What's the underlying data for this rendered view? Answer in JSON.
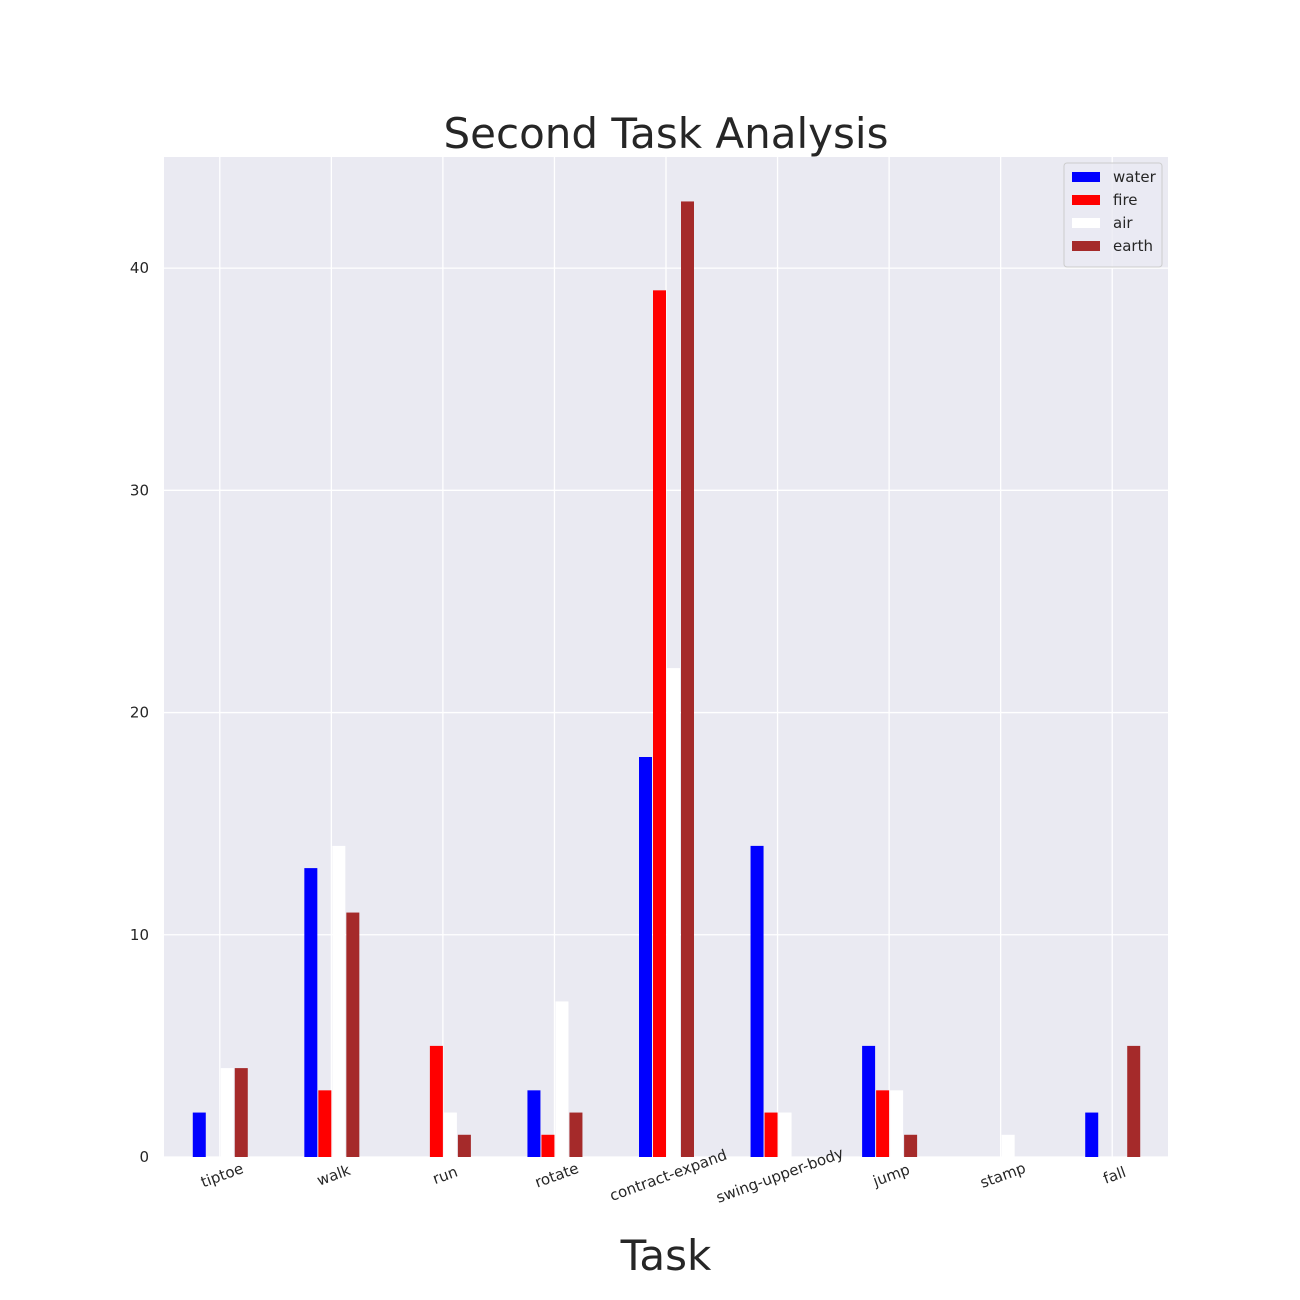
{
  "chart_data": {
    "type": "bar",
    "title": "Second Task Analysis",
    "xlabel": "Task",
    "ylabel": "",
    "categories": [
      "tiptoe",
      "walk",
      "run",
      "rotate",
      "contract-expand",
      "swing-upper-body",
      "jump",
      "stamp",
      "fall"
    ],
    "series": [
      {
        "name": "water",
        "color": "#0000ff",
        "values": [
          2,
          13,
          0,
          3,
          18,
          14,
          5,
          0,
          2
        ]
      },
      {
        "name": "fire",
        "color": "#ff0000",
        "values": [
          0,
          3,
          5,
          1,
          39,
          2,
          3,
          0,
          0
        ]
      },
      {
        "name": "air",
        "color": "#ffffff",
        "values": [
          4,
          14,
          2,
          7,
          22,
          2,
          3,
          1,
          0
        ]
      },
      {
        "name": "earth",
        "color": "#a52a2a",
        "values": [
          4,
          11,
          1,
          2,
          43,
          0,
          1,
          0,
          5
        ]
      }
    ],
    "ylim": [
      0,
      45
    ],
    "yticks": [
      0,
      10,
      20,
      30,
      40
    ],
    "grid": true,
    "legend_position": "top-right",
    "plot_background": "#eaeaf2",
    "grid_color": "#ffffff"
  }
}
